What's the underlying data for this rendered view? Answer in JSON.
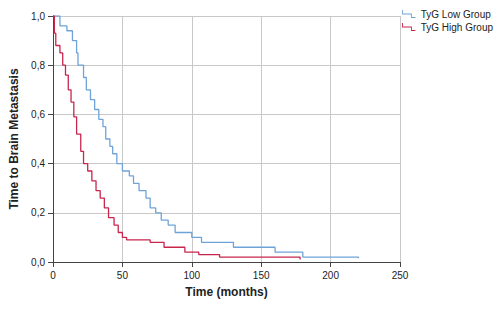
{
  "chart_data": {
    "type": "step_line",
    "x_label": "Time (months)",
    "y_label": "Time to Brain Metastasis",
    "xlim": [
      0,
      250
    ],
    "xticks": [
      0,
      50,
      100,
      150,
      200,
      250
    ],
    "ylim": [
      0,
      1
    ],
    "yticks": [
      {
        "value": 0,
        "label": "0,0"
      },
      {
        "value": 0.2,
        "label": "0,2"
      },
      {
        "value": 0.4,
        "label": "0,4"
      },
      {
        "value": 0.6,
        "label": "0,6"
      },
      {
        "value": 0.8,
        "label": "0,8"
      },
      {
        "value": 1,
        "label": "1,0"
      }
    ],
    "grid": true,
    "legend": "top right",
    "series": [
      {
        "name": "TyG Low Group",
        "color": "#6fa3d8",
        "x": [
          0,
          5,
          10,
          14,
          17,
          18,
          22,
          24,
          27,
          30,
          33,
          36,
          38,
          41,
          43,
          46,
          50,
          55,
          58,
          62,
          67,
          70,
          74,
          78,
          83,
          88,
          100,
          107,
          130,
          160,
          180,
          220
        ],
        "values": [
          1.0,
          0.96,
          0.94,
          0.9,
          0.85,
          0.8,
          0.75,
          0.7,
          0.66,
          0.62,
          0.58,
          0.55,
          0.5,
          0.47,
          0.44,
          0.4,
          0.37,
          0.35,
          0.32,
          0.29,
          0.26,
          0.22,
          0.2,
          0.17,
          0.15,
          0.12,
          0.1,
          0.08,
          0.06,
          0.04,
          0.02,
          0.015
        ]
      },
      {
        "name": "TyG High Group",
        "color": "#c8264c",
        "x": [
          0,
          1,
          2,
          5,
          7,
          9,
          11,
          13,
          15,
          17,
          20,
          22,
          25,
          28,
          31,
          34,
          37,
          40,
          44,
          47,
          50,
          53,
          70,
          80,
          95,
          105,
          120,
          178
        ],
        "values": [
          1.0,
          0.93,
          0.88,
          0.85,
          0.8,
          0.76,
          0.7,
          0.65,
          0.59,
          0.52,
          0.45,
          0.4,
          0.37,
          0.33,
          0.29,
          0.26,
          0.22,
          0.18,
          0.15,
          0.12,
          0.1,
          0.09,
          0.08,
          0.06,
          0.04,
          0.03,
          0.02,
          0.01
        ]
      }
    ]
  }
}
